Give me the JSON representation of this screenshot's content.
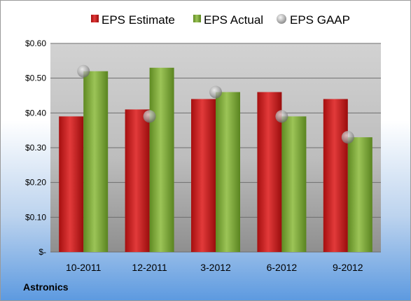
{
  "company": "Astronics",
  "colors": {
    "estimate": "#cc1f1f",
    "actual": "#7fa83a",
    "gaap": "#9a9a9a"
  },
  "chart_data": {
    "type": "bar",
    "categories": [
      "10-2011",
      "12-2011",
      "3-2012",
      "6-2012",
      "9-2012"
    ],
    "series": [
      {
        "name": "EPS Estimate",
        "values": [
          0.39,
          0.41,
          0.44,
          0.46,
          0.44
        ]
      },
      {
        "name": "EPS Actual",
        "values": [
          0.52,
          0.53,
          0.46,
          0.39,
          0.33
        ]
      },
      {
        "name": "EPS GAAP",
        "values": [
          0.52,
          0.39,
          0.46,
          0.39,
          0.33
        ],
        "marker": "circle"
      }
    ],
    "ylim": [
      0,
      0.6
    ],
    "yticks": [
      0,
      0.1,
      0.2,
      0.3,
      0.4,
      0.5,
      0.6
    ],
    "ytick_labels": [
      "$-",
      "$0.10",
      "$0.20",
      "$0.30",
      "$0.40",
      "$0.50",
      "$0.60"
    ],
    "grid": true,
    "legend_position": "top"
  }
}
